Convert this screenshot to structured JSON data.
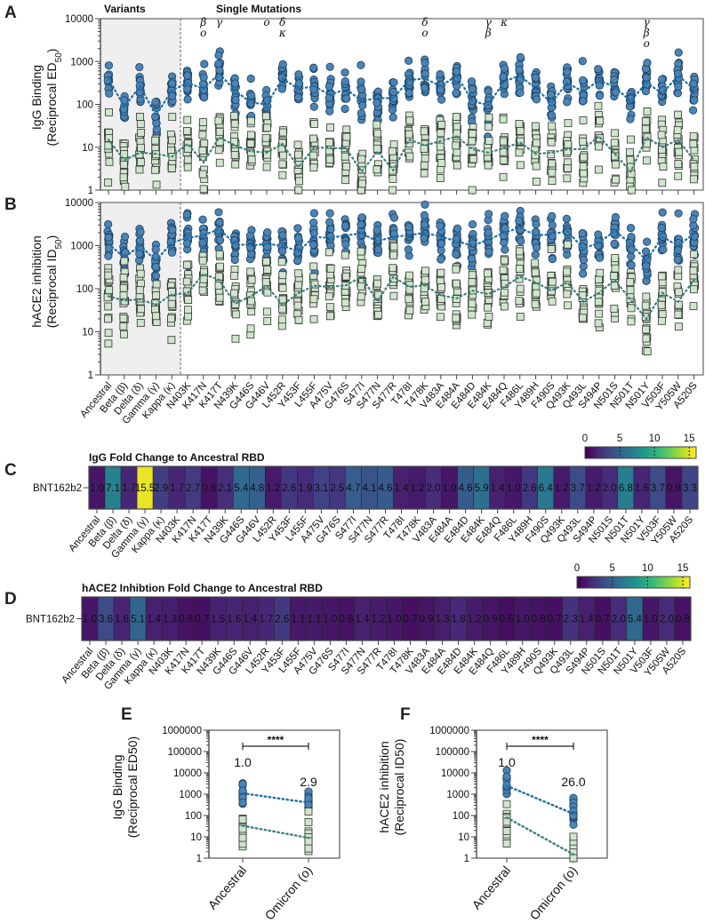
{
  "categories": [
    "Ancestral",
    "Beta (β)",
    "Delta (δ)",
    "Gamma (γ)",
    "Kappa (κ)",
    "N403K",
    "K417N",
    "K417T",
    "N439K",
    "G446S",
    "G446V",
    "L452R",
    "Y453F",
    "L455F",
    "A475V",
    "G476S",
    "S477I",
    "S477N",
    "S477R",
    "T478I",
    "T478K",
    "V483A",
    "E484A",
    "E484D",
    "E484K",
    "E484Q",
    "F486L",
    "Y489H",
    "F490S",
    "Q493K",
    "Q493L",
    "S494P",
    "N501S",
    "N501T",
    "N501Y",
    "V503F",
    "Y505W",
    "A520S"
  ],
  "colors": {
    "blue_fill": "#4a84b6",
    "blue_line": "#1f6ea6",
    "green_fill": "#cfe6cc",
    "green_line": "#3d7f7d",
    "shade": "#efefef"
  },
  "chart_data": [
    {
      "panel": "A",
      "type": "scatter",
      "scale": "log",
      "ylabel": [
        "IgG Binding",
        "(Reciprocal ED",
        "50",
        ")"
      ],
      "ylim": [
        1,
        10000
      ],
      "yticks": [
        "1",
        "10",
        "100",
        "1000",
        "10000"
      ],
      "group_labels": [
        "Variants",
        "Single Mutations"
      ],
      "annotations": [
        {
          "category": "K417N",
          "symbols": [
            "β",
            "o"
          ]
        },
        {
          "category": "K417T",
          "symbols": [
            "γ"
          ]
        },
        {
          "category": "G446V",
          "symbols": [
            "o"
          ]
        },
        {
          "category": "L452R",
          "symbols": [
            "δ",
            "κ"
          ]
        },
        {
          "category": "T478K",
          "symbols": [
            "δ",
            "o"
          ]
        },
        {
          "category": "E484K",
          "symbols": [
            "γ",
            "β"
          ]
        },
        {
          "category": "E484Q",
          "symbols": [
            "κ"
          ]
        },
        {
          "category": "N501Y",
          "symbols": [
            "γ",
            "β",
            "o"
          ]
        }
      ],
      "series": [
        {
          "name": "circles",
          "medians": [
            400,
            88,
            265,
            55,
            210,
            320,
            230,
            520,
            210,
            110,
            100,
            400,
            230,
            265,
            165,
            230,
            120,
            140,
            140,
            370,
            400,
            265,
            470,
            120,
            96,
            340,
            470,
            230,
            110,
            320,
            195,
            370,
            250,
            120,
            320,
            180,
            470,
            230
          ]
        },
        {
          "name": "squares",
          "medians": [
            15,
            5,
            7.5,
            7,
            6,
            12,
            4.4,
            17,
            11,
            8,
            7.5,
            12,
            3.4,
            10,
            9.5,
            9.5,
            2.7,
            8,
            2.9,
            15,
            11,
            14,
            18,
            9,
            7.5,
            9.5,
            13,
            7,
            7.5,
            9,
            9,
            18,
            7,
            2.7,
            17,
            10,
            15,
            5
          ]
        }
      ]
    },
    {
      "panel": "B",
      "type": "scatter",
      "scale": "log",
      "ylabel": [
        "hACE2 inhibition",
        "(Reciprocal ID",
        "50",
        ")"
      ],
      "ylim": [
        1,
        10000
      ],
      "yticks": [
        "1",
        "10",
        "100",
        "1000",
        "10000"
      ],
      "series": [
        {
          "name": "circles",
          "medians": [
            1100,
            530,
            1000,
            450,
            1170,
            1500,
            1750,
            2400,
            1100,
            1000,
            1100,
            1000,
            730,
            1600,
            1500,
            1750,
            1900,
            1270,
            1600,
            1750,
            2000,
            1600,
            1270,
            1000,
            1370,
            2000,
            2600,
            1750,
            1800,
            2200,
            850,
            1170,
            2200,
            1100,
            450,
            1600,
            1000,
            1900
          ]
        },
        {
          "name": "squares",
          "medians": [
            67,
            53,
            57,
            42,
            73,
            79,
            220,
            160,
            45,
            67,
            117,
            42,
            79,
            117,
            110,
            120,
            190,
            50,
            190,
            110,
            120,
            70,
            60,
            90,
            75,
            110,
            190,
            140,
            90,
            140,
            50,
            80,
            160,
            55,
            20,
            80,
            50,
            160
          ]
        }
      ]
    },
    {
      "panel": "C",
      "type": "heatmap",
      "title": "IgG Fold Change to Ancestral RBD",
      "row": "BNT162b2",
      "colorbar_ticks": [
        "0",
        "5",
        "10",
        "15"
      ],
      "range": [
        0,
        16
      ],
      "values": [
        "1.0",
        "7.1",
        "1.7",
        "15.5",
        "2.9",
        "1.7",
        "2.7",
        "0.8",
        "2.1",
        "5.4",
        "4.8",
        "1.2",
        "2.6",
        "1.9",
        "3.1",
        "2.5",
        "4.7",
        "4.1",
        "4.6",
        "1.4",
        "1.2",
        "2.0",
        "1.0",
        "4.6",
        "5.9",
        "1.4",
        "1.0",
        "2.6",
        "6.4",
        "1.2",
        "3.7",
        "1.2",
        "2.0",
        "6.8",
        "1.6",
        "3.7",
        "0.9",
        "3.3"
      ]
    },
    {
      "panel": "D",
      "type": "heatmap",
      "title": "hACE2 Inhibtion Fold Change to Ancestral RBD",
      "row": "BNT162b2",
      "colorbar_ticks": [
        "0",
        "5",
        "10",
        "15"
      ],
      "range": [
        0,
        16
      ],
      "values": [
        "1.0",
        "3.6",
        "1.6",
        "5.1",
        "1.4",
        "1.3",
        "0.8",
        "0.7",
        "1.5",
        "1.6",
        "1.4",
        "1.7",
        "2.6",
        "1.1",
        "1.1",
        "1.0",
        "0.8",
        "1.4",
        "1.2",
        "1.0",
        "0.7",
        "0.9",
        "1.3",
        "1.8",
        "1.2",
        "0.9",
        "0.6",
        "1.0",
        "0.8",
        "0.7",
        "2.3",
        "1.4",
        "0.7",
        "2.0",
        "5.4",
        "1.0",
        "2.0",
        "0.8"
      ]
    },
    {
      "panel": "E",
      "type": "scatter",
      "scale": "log",
      "ylabel": [
        "IgG Binding",
        "(Reciprocal ED50)"
      ],
      "categories": [
        "Ancestral",
        "Omicron (ο)"
      ],
      "ylim": [
        1,
        1000000
      ],
      "yticks": [
        "1",
        "10",
        "100",
        "1000",
        "10000",
        "100000",
        "1000000"
      ],
      "significance": "****",
      "fold_labels": [
        "1.0",
        "2.9"
      ],
      "series": [
        {
          "name": "circles",
          "medians": [
            1100,
            400
          ]
        },
        {
          "name": "squares",
          "medians": [
            33,
            9
          ]
        }
      ]
    },
    {
      "panel": "F",
      "type": "scatter",
      "scale": "log",
      "ylabel": [
        "hACE2 inhibition",
        "(Reciprocal ID50)"
      ],
      "categories": [
        "Ancestral",
        "Omicron (ο)"
      ],
      "ylim": [
        1,
        1000000
      ],
      "yticks": [
        "1",
        "10",
        "100",
        "1000",
        "10000",
        "100000",
        "1000000"
      ],
      "significance": "****",
      "fold_labels": [
        "1.0",
        "26.0"
      ],
      "series": [
        {
          "name": "circles",
          "medians": [
            2500,
            120
          ]
        },
        {
          "name": "squares",
          "medians": [
            80,
            1.5
          ]
        }
      ]
    }
  ]
}
